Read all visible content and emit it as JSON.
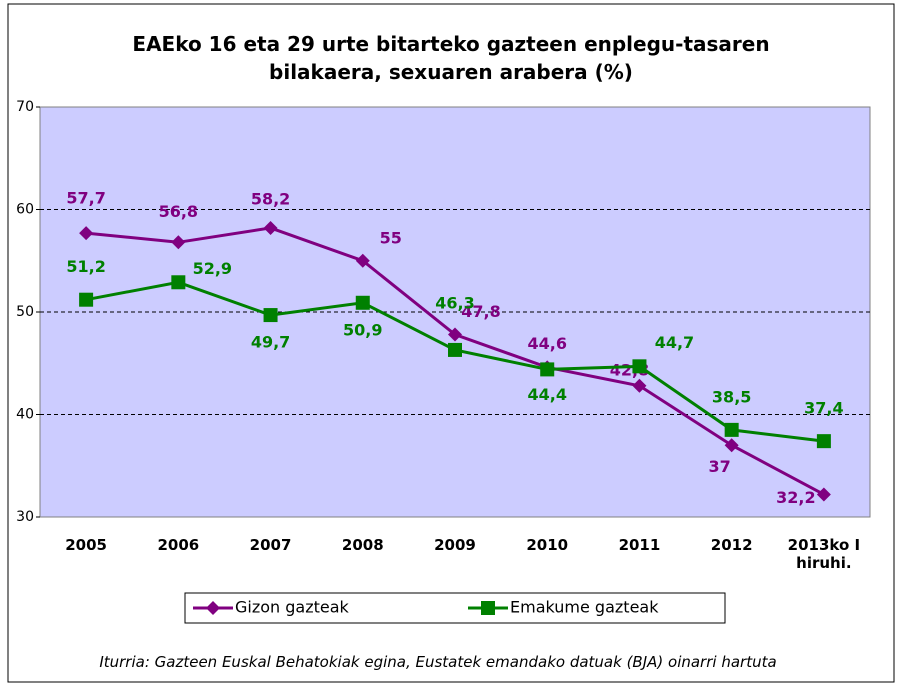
{
  "chart_data": {
    "type": "line",
    "title": "EAEko 16 eta 29 urte bitarteko gazteen enplegu-tasaren bilakaera, sexuaren arabera (%)",
    "categories": [
      "2005",
      "2006",
      "2007",
      "2008",
      "2009",
      "2010",
      "2011",
      "2012",
      "2013ko I hiruhi."
    ],
    "series": [
      {
        "name": "Gizon gazteak",
        "color": "#800080",
        "marker": "diamond",
        "values": [
          57.7,
          56.8,
          58.2,
          55,
          47.8,
          44.6,
          42.8,
          37,
          32.2
        ],
        "value_labels": [
          "57,7",
          "56,8",
          "58,2",
          "55",
          "47,8",
          "44,6",
          "42,8",
          "37",
          "32,2"
        ]
      },
      {
        "name": "Emakume gazteak",
        "color": "#008000",
        "marker": "square",
        "values": [
          51.2,
          52.9,
          49.7,
          50.9,
          46.3,
          44.4,
          44.7,
          38.5,
          37.4
        ],
        "value_labels": [
          "51,2",
          "52,9",
          "49,7",
          "50,9",
          "46,3",
          "44,4",
          "44,7",
          "38,5",
          "37,4"
        ]
      }
    ],
    "ylim": [
      30,
      70
    ],
    "yticks": [
      30,
      40,
      50,
      60,
      70
    ],
    "grid": true,
    "legend": "bottom",
    "source": "Iturria: Gazteen Euskal Behatokiak egina, Eustatek emandako datuak (BJA) oinarri hartuta"
  }
}
